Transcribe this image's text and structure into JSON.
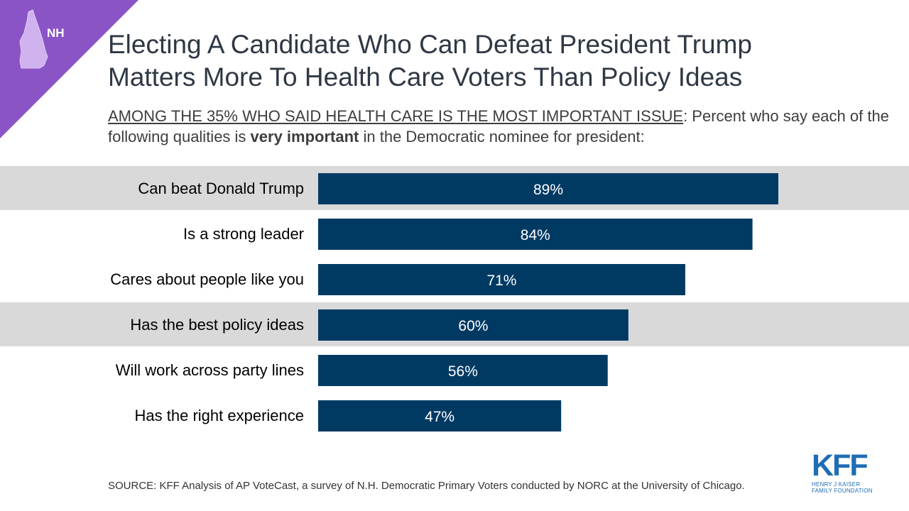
{
  "badge": {
    "state": "NH",
    "color": "#8b54c6"
  },
  "title_line1": "Electing A Candidate Who Can Defeat President Trump",
  "title_line2": "Matters More To Health Care Voters Than Policy Ideas",
  "subtitle": {
    "underlined": "AMONG THE 35% WHO SAID HEALTH CARE IS THE MOST IMPORTANT ISSUE",
    "part1": ": Percent who say each of the following qualities is ",
    "bold": "very important",
    "part2": " in the Democratic nominee for president:"
  },
  "chart_data": {
    "type": "bar",
    "orientation": "horizontal",
    "categories": [
      "Can beat Donald Trump",
      "Is a strong leader",
      "Cares about people like you",
      "Has the best policy ideas",
      "Will work across party lines",
      "Has the right experience"
    ],
    "values": [
      89,
      84,
      71,
      60,
      56,
      47
    ],
    "value_labels": [
      "89%",
      "84%",
      "71%",
      "60%",
      "56%",
      "47%"
    ],
    "highlighted": [
      true,
      false,
      false,
      true,
      false,
      false
    ],
    "xlim": [
      0,
      100
    ],
    "bar_color": "#003a63",
    "highlight_color": "#d9d9d9",
    "label_color": "#ffffff"
  },
  "source": "SOURCE: KFF Analysis of AP VoteCast, a survey of N.H. Democratic Primary Voters conducted by NORC at the University of Chicago.",
  "logo": {
    "mark": "KFF",
    "line1": "HENRY J KAISER",
    "line2": "FAMILY FOUNDATION",
    "color": "#1f6db6"
  }
}
